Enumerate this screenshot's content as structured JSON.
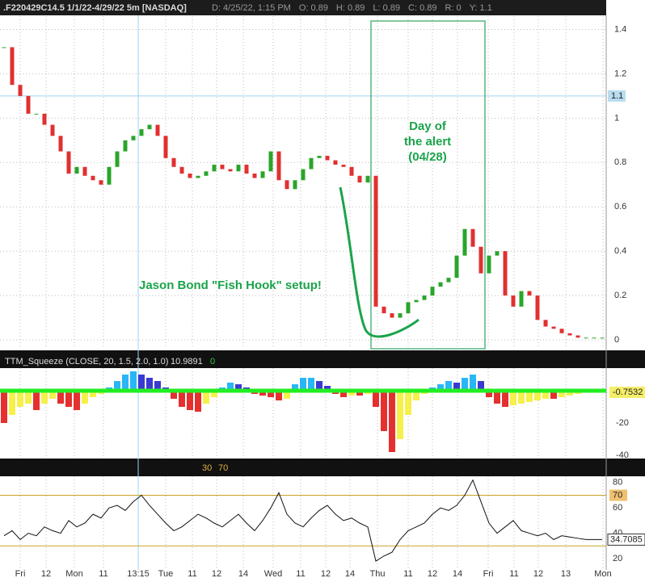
{
  "chart_data": [
    {
      "type": "candlestick",
      "title": ".F220429C14.5 1/1/22-4/29/22 5m [NASDAQ]",
      "info": [
        "D: 4/25/22, 1:15 PM",
        "O: 0.89",
        "H: 0.89",
        "L: 0.89",
        "C: 0.89",
        "R: 0",
        "Y: 1.1"
      ],
      "annotations": [
        "Day of",
        "the alert",
        "(04/28)",
        "Jason Bond \"Fish Hook\" setup!"
      ],
      "values": [
        1.32,
        1.15,
        1.1,
        1.02,
        1.02,
        0.97,
        0.92,
        0.85,
        0.75,
        0.78,
        0.74,
        0.72,
        0.7,
        0.78,
        0.85,
        0.9,
        0.92,
        0.95,
        0.97,
        0.92,
        0.82,
        0.78,
        0.75,
        0.73,
        0.74,
        0.76,
        0.79,
        0.77,
        0.76,
        0.79,
        0.75,
        0.73,
        0.76,
        0.85,
        0.72,
        0.68,
        0.72,
        0.77,
        0.82,
        0.83,
        0.81,
        0.79,
        0.78,
        0.74,
        0.71,
        0.74,
        0.15,
        0.12,
        0.1,
        0.12,
        0.17,
        0.18,
        0.2,
        0.24,
        0.26,
        0.28,
        0.38,
        0.5,
        0.42,
        0.3,
        0.38,
        0.4,
        0.2,
        0.15,
        0.22,
        0.2,
        0.09,
        0.06,
        0.05,
        0.03,
        0.02,
        0.01,
        0.01,
        0.01,
        0.01
      ],
      "up_color": "#2aa52a",
      "down_color": "#e03030",
      "ylim": [
        -0.04,
        1.46
      ],
      "yticks": [
        0,
        0.2,
        0.4,
        0.6,
        0.8,
        1,
        1.2,
        1.4
      ],
      "hline": 1.1,
      "xlim": [
        -0.5,
        74.5
      ],
      "xticks": [
        {
          "value": 2,
          "label": "Fri"
        },
        {
          "value": 5.2,
          "label": "12"
        },
        {
          "value": 8.7,
          "label": "Mon"
        },
        {
          "value": 12.3,
          "label": "11"
        },
        {
          "value": 16.6,
          "label": "13:15"
        },
        {
          "value": 20,
          "label": "Tue"
        },
        {
          "value": 23.3,
          "label": "11"
        },
        {
          "value": 26.3,
          "label": "12"
        },
        {
          "value": 29.6,
          "label": "14"
        },
        {
          "value": 33.3,
          "label": "Wed"
        },
        {
          "value": 36.7,
          "label": "11"
        },
        {
          "value": 39.8,
          "label": "12"
        },
        {
          "value": 42.8,
          "label": "14"
        },
        {
          "value": 46.2,
          "label": "Thu"
        },
        {
          "value": 50,
          "label": "11"
        },
        {
          "value": 53,
          "label": "12"
        },
        {
          "value": 56.1,
          "label": "14"
        },
        {
          "value": 59.9,
          "label": "Fri"
        },
        {
          "value": 63.1,
          "label": "11"
        },
        {
          "value": 66.1,
          "label": "12"
        },
        {
          "value": 69.5,
          "label": "13"
        },
        {
          "value": 74.1,
          "label": "Mon"
        }
      ],
      "grid": true
    },
    {
      "type": "histogram",
      "title": "TTM_Squeeze (CLOSE, 20, 1.5, 2.0, 1.0)",
      "info": [
        "10.9891",
        "0"
      ],
      "last_label": "-0.7532",
      "values": [
        -20,
        -15,
        -10,
        -8,
        -12,
        -8,
        -5,
        -8,
        -10,
        -12,
        -8,
        -4,
        -2,
        2,
        6,
        10,
        12,
        10,
        8,
        6,
        2,
        -5,
        -10,
        -12,
        -13,
        -8,
        -4,
        2,
        5,
        4,
        2,
        -2,
        -3,
        -4,
        -6,
        -5,
        4,
        8,
        8,
        6,
        3,
        -2,
        -4,
        -3,
        -3,
        -2,
        -10,
        -25,
        -38,
        -30,
        -15,
        -6,
        -2,
        2,
        4,
        6,
        5,
        8,
        10,
        6,
        -4,
        -8,
        -10,
        -9,
        -8,
        -7,
        -6,
        -5,
        -5,
        -4,
        -3,
        -2,
        -1,
        -1,
        -1
      ],
      "colors": {
        "pos_rising": "#29b6f6",
        "pos_falling": "#3a3ad0",
        "neg_falling": "#e53030",
        "neg_rising": "#f5f04a",
        "zero_line": "#22ee22"
      },
      "ylim": [
        -42,
        14
      ],
      "yticks": [
        -20,
        -40
      ],
      "xlim": [
        -0.5,
        74.5
      ]
    },
    {
      "type": "line",
      "levels": [
        30,
        70
      ],
      "last_label": "34.7085",
      "values": [
        38,
        42,
        35,
        40,
        38,
        45,
        42,
        40,
        50,
        45,
        48,
        55,
        52,
        60,
        62,
        58,
        65,
        70,
        62,
        55,
        48,
        42,
        45,
        50,
        55,
        52,
        48,
        45,
        50,
        55,
        48,
        42,
        50,
        60,
        72,
        55,
        48,
        45,
        52,
        58,
        62,
        55,
        50,
        52,
        48,
        45,
        18,
        22,
        25,
        35,
        42,
        45,
        48,
        55,
        60,
        58,
        62,
        70,
        82,
        65,
        48,
        40,
        45,
        50,
        42,
        40,
        38,
        40,
        35,
        38,
        37,
        36,
        35,
        35,
        35
      ],
      "color": "#111111",
      "level_color": "#c9a227",
      "ylim": [
        11,
        85
      ],
      "yticks": [
        20,
        40,
        60,
        80
      ],
      "xlim": [
        -0.5,
        74.5
      ]
    }
  ]
}
